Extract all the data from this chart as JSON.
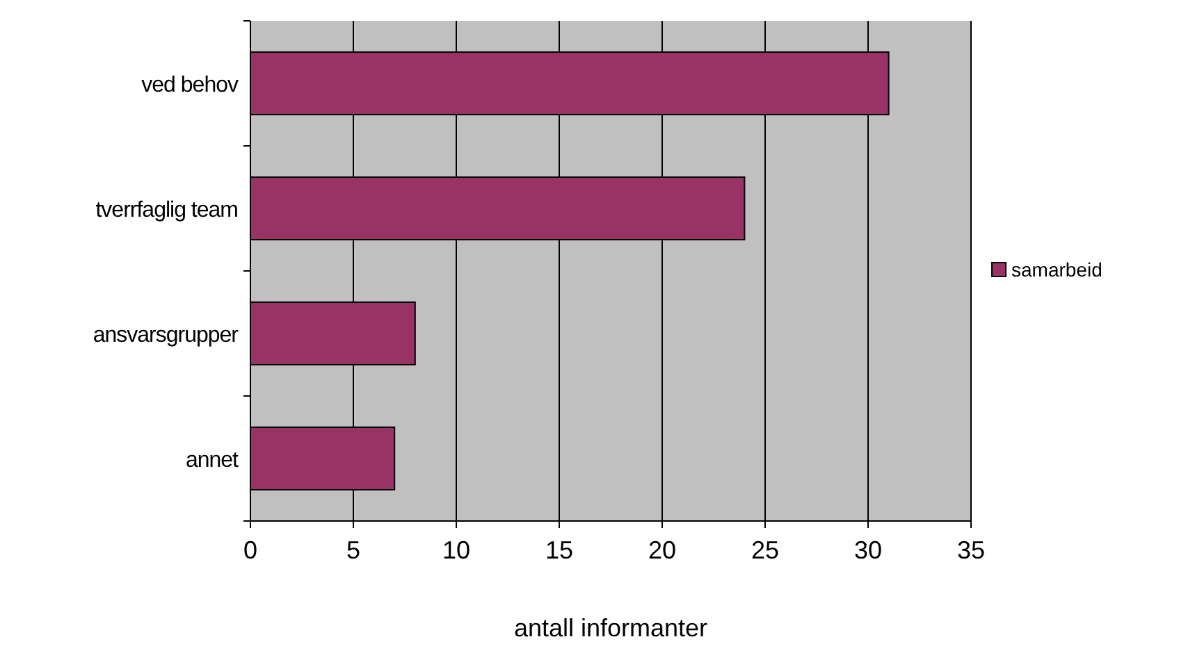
{
  "chart_data": {
    "type": "bar",
    "orientation": "horizontal",
    "xlabel": "antall informanter",
    "categories": [
      "ved behov",
      "tverrfaglig team",
      "ansvarsgrupper",
      "annet"
    ],
    "series": [
      {
        "name": "samarbeid",
        "color": "#993366",
        "values": [
          31,
          24,
          8,
          7
        ]
      }
    ],
    "xlim": [
      0,
      35
    ],
    "xticks": [
      0,
      5,
      10,
      15,
      20,
      25,
      30,
      35
    ],
    "grid": "x",
    "legend": "right"
  }
}
